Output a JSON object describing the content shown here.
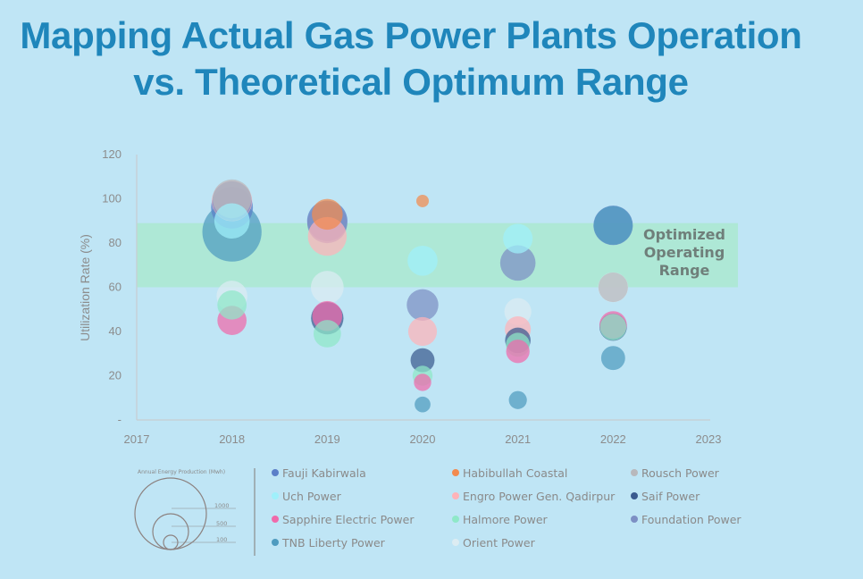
{
  "title_line1": "Mapping Actual Gas Power Plants Operation",
  "title_line2": "vs. Theoretical Optimum Range",
  "chart_data": {
    "type": "scatter",
    "subtype": "bubble",
    "title": "Mapping Actual Gas Power Plants Operation vs. Theoretical Optimum Range",
    "xlabel": "",
    "ylabel": "Utilization Rate (%)",
    "xlim": [
      2017,
      2023
    ],
    "ylim": [
      0,
      120
    ],
    "x_ticks": [
      "2017",
      "2018",
      "2019",
      "2020",
      "2021",
      "2022",
      "2023"
    ],
    "y_ticks": [
      "-",
      "20",
      "40",
      "60",
      "80",
      "100",
      "120"
    ],
    "y_tick_values": [
      0,
      20,
      40,
      60,
      80,
      100,
      120
    ],
    "grid": false,
    "band": {
      "from": 60,
      "to": 89,
      "color": "#aee8d6",
      "label_lines": [
        "Optimized",
        "Operating",
        "Range"
      ]
    },
    "size_legend": {
      "title": "Annual Energy Production (Mwh)",
      "values": [
        "1000",
        "500",
        "100"
      ]
    },
    "series": [
      {
        "name": "Fauji Kabirwala",
        "color": "#5b7fc8",
        "points": [
          {
            "x": 2018,
            "y": 96,
            "size": 700
          },
          {
            "x": 2019,
            "y": 90,
            "size": 650
          },
          {
            "x": 2022,
            "y": 88,
            "size": 620
          }
        ]
      },
      {
        "name": "Habibullah Coastal",
        "color": "#f28a4e",
        "points": [
          {
            "x": 2019,
            "y": 93,
            "size": 380
          },
          {
            "x": 2020,
            "y": 99,
            "size": 50
          }
        ]
      },
      {
        "name": "Rousch Power",
        "color": "#b8b8bc",
        "points": [
          {
            "x": 2018,
            "y": 100,
            "size": 600
          },
          {
            "x": 2022,
            "y": 60,
            "size": 350
          }
        ]
      },
      {
        "name": "Uch Power",
        "color": "#9ff0fb",
        "points": [
          {
            "x": 2018,
            "y": 90,
            "size": 500
          },
          {
            "x": 2020,
            "y": 72,
            "size": 360
          },
          {
            "x": 2021,
            "y": 82,
            "size": 350
          }
        ]
      },
      {
        "name": "Engro Power Gen. Qadirpur",
        "color": "#ffb3b8",
        "points": [
          {
            "x": 2018,
            "y": 99,
            "size": 650
          },
          {
            "x": 2019,
            "y": 83,
            "size": 600
          },
          {
            "x": 2020,
            "y": 40,
            "size": 330
          },
          {
            "x": 2021,
            "y": 41,
            "size": 270
          }
        ]
      },
      {
        "name": "Saif Power",
        "color": "#3a5a8f",
        "points": [
          {
            "x": 2019,
            "y": 46,
            "size": 420
          },
          {
            "x": 2020,
            "y": 27,
            "size": 230
          },
          {
            "x": 2021,
            "y": 36,
            "size": 260
          },
          {
            "x": 2022,
            "y": 42,
            "size": 300
          }
        ]
      },
      {
        "name": "Sapphire Electric Power",
        "color": "#f06aaa",
        "points": [
          {
            "x": 2018,
            "y": 45,
            "size": 340
          },
          {
            "x": 2019,
            "y": 47,
            "size": 360
          },
          {
            "x": 2020,
            "y": 17,
            "size": 120
          },
          {
            "x": 2021,
            "y": 31,
            "size": 220
          },
          {
            "x": 2022,
            "y": 43,
            "size": 300
          }
        ]
      },
      {
        "name": "Halmore Power",
        "color": "#8fe8c8",
        "points": [
          {
            "x": 2018,
            "y": 52,
            "size": 340
          },
          {
            "x": 2019,
            "y": 39,
            "size": 300
          },
          {
            "x": 2020,
            "y": 20,
            "size": 160
          },
          {
            "x": 2021,
            "y": 34,
            "size": 230
          },
          {
            "x": 2022,
            "y": 42,
            "size": 280
          }
        ]
      },
      {
        "name": "Foundation Power",
        "color": "#7d8fc4",
        "points": [
          {
            "x": 2018,
            "y": 99,
            "size": 620
          },
          {
            "x": 2019,
            "y": 89,
            "size": 640
          },
          {
            "x": 2020,
            "y": 52,
            "size": 400
          },
          {
            "x": 2021,
            "y": 71,
            "size": 500
          }
        ]
      },
      {
        "name": "TNB Liberty Power",
        "color": "#4f9bbf",
        "points": [
          {
            "x": 2018,
            "y": 85,
            "size": 1400
          },
          {
            "x": 2020,
            "y": 7,
            "size": 100
          },
          {
            "x": 2021,
            "y": 9,
            "size": 130
          },
          {
            "x": 2022,
            "y": 28,
            "size": 230
          },
          {
            "x": 2022,
            "y": 88,
            "size": 600
          }
        ]
      },
      {
        "name": "Orient Power",
        "color": "#dcecf2",
        "points": [
          {
            "x": 2018,
            "y": 56,
            "size": 380
          },
          {
            "x": 2019,
            "y": 60,
            "size": 430
          },
          {
            "x": 2021,
            "y": 49,
            "size": 290
          },
          {
            "x": 2022,
            "y": 60,
            "size": 360
          }
        ]
      }
    ]
  }
}
